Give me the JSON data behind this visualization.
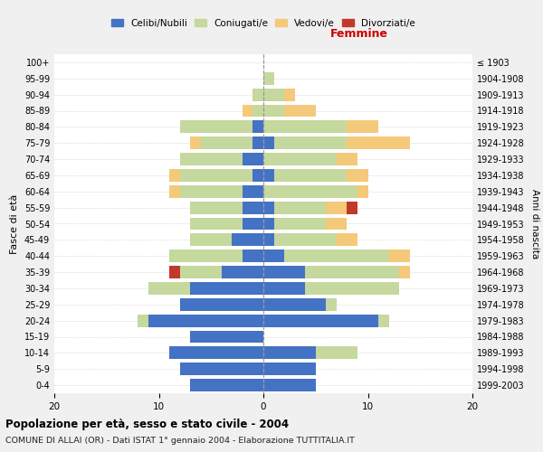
{
  "age_groups": [
    "0-4",
    "5-9",
    "10-14",
    "15-19",
    "20-24",
    "25-29",
    "30-34",
    "35-39",
    "40-44",
    "45-49",
    "50-54",
    "55-59",
    "60-64",
    "65-69",
    "70-74",
    "75-79",
    "80-84",
    "85-89",
    "90-94",
    "95-99",
    "100+"
  ],
  "birth_years": [
    "1999-2003",
    "1994-1998",
    "1989-1993",
    "1984-1988",
    "1979-1983",
    "1974-1978",
    "1969-1973",
    "1964-1968",
    "1959-1963",
    "1954-1958",
    "1949-1953",
    "1944-1948",
    "1939-1943",
    "1934-1938",
    "1929-1933",
    "1924-1928",
    "1919-1923",
    "1914-1918",
    "1909-1913",
    "1904-1908",
    "≤ 1903"
  ],
  "males": {
    "celibi": [
      7,
      8,
      9,
      7,
      11,
      8,
      7,
      4,
      2,
      3,
      2,
      2,
      2,
      1,
      2,
      1,
      1,
      0,
      0,
      0,
      0
    ],
    "coniugati": [
      0,
      0,
      0,
      0,
      1,
      0,
      4,
      4,
      7,
      4,
      5,
      5,
      6,
      7,
      6,
      5,
      7,
      1,
      1,
      0,
      0
    ],
    "vedovi": [
      0,
      0,
      0,
      0,
      0,
      0,
      0,
      0,
      0,
      0,
      0,
      0,
      1,
      1,
      0,
      1,
      0,
      1,
      0,
      0,
      0
    ],
    "divorziati": [
      0,
      0,
      0,
      0,
      0,
      0,
      0,
      1,
      0,
      0,
      0,
      0,
      0,
      0,
      0,
      0,
      0,
      0,
      0,
      0,
      0
    ]
  },
  "females": {
    "nubili": [
      5,
      5,
      5,
      0,
      11,
      6,
      4,
      4,
      2,
      1,
      1,
      1,
      0,
      1,
      0,
      1,
      0,
      0,
      0,
      0,
      0
    ],
    "coniugate": [
      0,
      0,
      4,
      0,
      1,
      1,
      9,
      9,
      10,
      6,
      5,
      5,
      9,
      7,
      7,
      7,
      8,
      2,
      2,
      1,
      0
    ],
    "vedove": [
      0,
      0,
      0,
      0,
      0,
      0,
      0,
      1,
      2,
      2,
      2,
      2,
      1,
      2,
      2,
      6,
      3,
      3,
      1,
      0,
      0
    ],
    "divorziate": [
      0,
      0,
      0,
      0,
      0,
      0,
      0,
      0,
      0,
      0,
      0,
      1,
      0,
      0,
      0,
      0,
      0,
      0,
      0,
      0,
      0
    ]
  },
  "colors": {
    "celibi_nubili": "#4472c4",
    "coniugati": "#c5d89d",
    "vedovi": "#f5c97a",
    "divorziati": "#c0392b"
  },
  "xlim": 20,
  "title": "Popolazione per età, sesso e stato civile - 2004",
  "subtitle": "COMUNE DI ALLAI (OR) - Dati ISTAT 1° gennaio 2004 - Elaborazione TUTTITALIA.IT",
  "ylabel": "Fasce di età",
  "ylabel_right": "Anni di nascita",
  "xlabel_right": "Femmine",
  "bg_color": "#f0f0f0",
  "bar_bg_color": "#ffffff"
}
